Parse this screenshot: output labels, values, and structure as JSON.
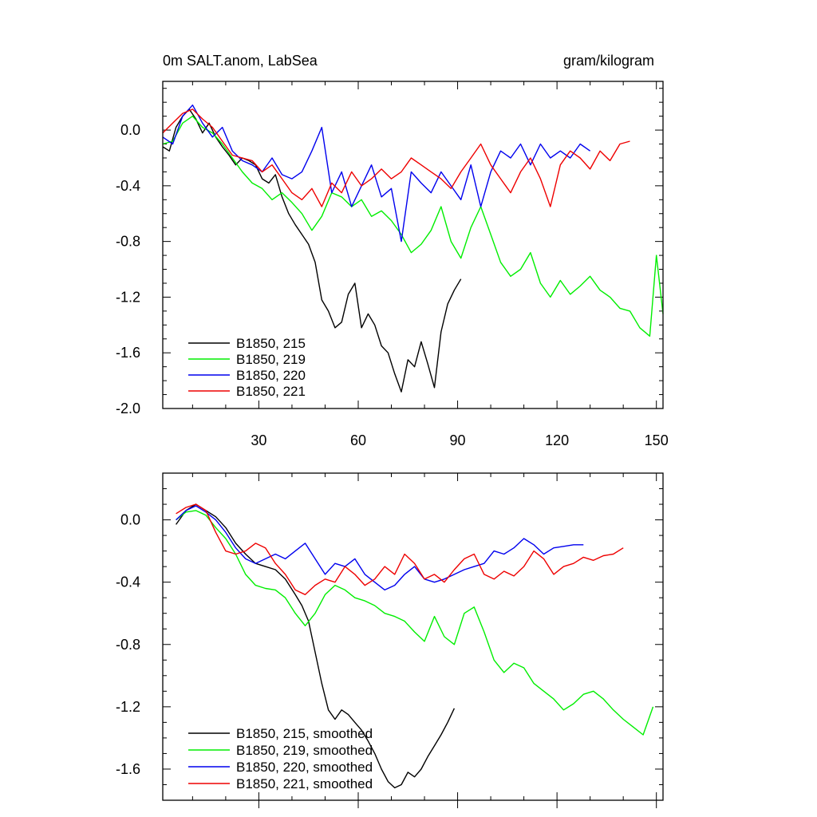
{
  "chart_data": [
    {
      "type": "line",
      "title": "0m SALT.anom, LabSea",
      "units": "gram/kilogram",
      "xlabel": "",
      "ylabel": "",
      "xlim": [
        1,
        152
      ],
      "ylim": [
        -2.0,
        0.35
      ],
      "x_ticks": [
        30,
        60,
        90,
        120,
        150
      ],
      "y_ticks": [
        0.0,
        -0.4,
        -0.8,
        -1.2,
        -1.6,
        -2.0
      ],
      "y_tick_labels": [
        "0.0",
        "-0.4",
        "-0.8",
        "-1.2",
        "-1.6",
        "-2.0"
      ],
      "legend_position": "bottom-left",
      "series": [
        {
          "name": "B1850, 215",
          "color": "#000000",
          "x": [
            1,
            3,
            5,
            7,
            9,
            11,
            13,
            15,
            17,
            19,
            21,
            23,
            25,
            27,
            29,
            31,
            33,
            35,
            37,
            39,
            41,
            43,
            45,
            47,
            49,
            51,
            53,
            55,
            57,
            59,
            61,
            63,
            65,
            67,
            69,
            71,
            73,
            75,
            77,
            79,
            81,
            83,
            85,
            87,
            89,
            91
          ],
          "y": [
            -0.12,
            -0.15,
            0.02,
            0.1,
            0.15,
            0.08,
            -0.02,
            0.05,
            -0.05,
            -0.12,
            -0.18,
            -0.25,
            -0.2,
            -0.22,
            -0.25,
            -0.35,
            -0.38,
            -0.32,
            -0.48,
            -0.6,
            -0.68,
            -0.75,
            -0.82,
            -0.95,
            -1.22,
            -1.3,
            -1.42,
            -1.38,
            -1.18,
            -1.1,
            -1.42,
            -1.32,
            -1.4,
            -1.55,
            -1.6,
            -1.75,
            -1.88,
            -1.65,
            -1.7,
            -1.52,
            -1.68,
            -1.85,
            -1.45,
            -1.25,
            -1.15,
            -1.07
          ]
        },
        {
          "name": "B1850, 219",
          "color": "#00ee00",
          "x": [
            1,
            4,
            7,
            10,
            13,
            16,
            19,
            22,
            25,
            28,
            31,
            34,
            37,
            40,
            43,
            46,
            49,
            52,
            55,
            58,
            61,
            64,
            67,
            70,
            73,
            76,
            79,
            82,
            85,
            88,
            91,
            94,
            97,
            100,
            103,
            106,
            109,
            112,
            115,
            118,
            121,
            124,
            127,
            130,
            133,
            136,
            139,
            142,
            145,
            148,
            150,
            152
          ],
          "y": [
            -0.1,
            -0.08,
            0.05,
            0.1,
            0.02,
            -0.02,
            -0.1,
            -0.2,
            -0.3,
            -0.38,
            -0.42,
            -0.5,
            -0.45,
            -0.52,
            -0.6,
            -0.72,
            -0.62,
            -0.45,
            -0.48,
            -0.55,
            -0.5,
            -0.62,
            -0.58,
            -0.65,
            -0.75,
            -0.88,
            -0.82,
            -0.72,
            -0.55,
            -0.8,
            -0.92,
            -0.7,
            -0.55,
            -0.75,
            -0.95,
            -1.05,
            -1.0,
            -0.88,
            -1.1,
            -1.2,
            -1.08,
            -1.18,
            -1.12,
            -1.05,
            -1.15,
            -1.2,
            -1.28,
            -1.3,
            -1.42,
            -1.48,
            -0.9,
            -1.32
          ]
        },
        {
          "name": "B1850, 220",
          "color": "#0000ee",
          "x": [
            1,
            4,
            7,
            10,
            13,
            16,
            19,
            22,
            25,
            28,
            31,
            34,
            37,
            40,
            43,
            46,
            49,
            52,
            55,
            58,
            61,
            64,
            67,
            70,
            73,
            76,
            79,
            82,
            85,
            88,
            91,
            94,
            97,
            100,
            103,
            106,
            109,
            112,
            115,
            118,
            121,
            124,
            127,
            130
          ],
          "y": [
            -0.05,
            -0.1,
            0.1,
            0.18,
            0.05,
            -0.05,
            0.02,
            -0.15,
            -0.22,
            -0.25,
            -0.3,
            -0.2,
            -0.32,
            -0.35,
            -0.3,
            -0.15,
            0.02,
            -0.45,
            -0.3,
            -0.55,
            -0.4,
            -0.25,
            -0.48,
            -0.42,
            -0.8,
            -0.3,
            -0.38,
            -0.45,
            -0.3,
            -0.4,
            -0.5,
            -0.25,
            -0.55,
            -0.3,
            -0.15,
            -0.2,
            -0.1,
            -0.25,
            -0.1,
            -0.2,
            -0.15,
            -0.2,
            -0.1,
            -0.15
          ]
        },
        {
          "name": "B1850, 221",
          "color": "#ee0000",
          "x": [
            1,
            4,
            7,
            10,
            13,
            16,
            19,
            22,
            25,
            28,
            31,
            34,
            37,
            40,
            43,
            46,
            49,
            52,
            55,
            58,
            61,
            64,
            67,
            70,
            73,
            76,
            79,
            82,
            85,
            88,
            91,
            94,
            97,
            100,
            103,
            106,
            109,
            112,
            115,
            118,
            121,
            124,
            127,
            130,
            133,
            136,
            139,
            142
          ],
          "y": [
            -0.02,
            0.05,
            0.12,
            0.15,
            0.08,
            0.02,
            -0.08,
            -0.18,
            -0.2,
            -0.22,
            -0.3,
            -0.25,
            -0.35,
            -0.45,
            -0.5,
            -0.42,
            -0.55,
            -0.38,
            -0.45,
            -0.3,
            -0.4,
            -0.35,
            -0.28,
            -0.35,
            -0.3,
            -0.2,
            -0.25,
            -0.3,
            -0.35,
            -0.42,
            -0.3,
            -0.2,
            -0.1,
            -0.25,
            -0.35,
            -0.45,
            -0.3,
            -0.2,
            -0.35,
            -0.55,
            -0.25,
            -0.15,
            -0.2,
            -0.28,
            -0.15,
            -0.22,
            -0.1,
            -0.08
          ]
        }
      ]
    },
    {
      "type": "line",
      "title": "",
      "xlabel": "",
      "ylabel": "",
      "xlim": [
        1,
        152
      ],
      "ylim": [
        -1.8,
        0.3
      ],
      "x_ticks": [
        30,
        60,
        90,
        120,
        150
      ],
      "y_ticks": [
        0.0,
        -0.4,
        -0.8,
        -1.2,
        -1.6
      ],
      "y_tick_labels": [
        "0.0",
        "-0.4",
        "-0.8",
        "-1.2",
        "-1.6"
      ],
      "legend_position": "bottom-left",
      "series": [
        {
          "name": "B1850, 215, smoothed",
          "color": "#000000",
          "x": [
            5,
            8,
            11,
            14,
            17,
            20,
            23,
            26,
            29,
            32,
            35,
            38,
            41,
            43,
            45,
            47,
            49,
            51,
            53,
            55,
            57,
            59,
            61,
            63,
            65,
            67,
            69,
            71,
            73,
            75,
            77,
            79,
            81,
            83,
            85,
            87,
            89
          ],
          "y": [
            -0.03,
            0.06,
            0.1,
            0.06,
            0.02,
            -0.05,
            -0.15,
            -0.22,
            -0.28,
            -0.3,
            -0.32,
            -0.38,
            -0.48,
            -0.55,
            -0.65,
            -0.85,
            -1.05,
            -1.22,
            -1.28,
            -1.22,
            -1.25,
            -1.3,
            -1.35,
            -1.42,
            -1.5,
            -1.6,
            -1.68,
            -1.72,
            -1.7,
            -1.62,
            -1.65,
            -1.6,
            -1.52,
            -1.45,
            -1.38,
            -1.3,
            -1.21
          ]
        },
        {
          "name": "B1850, 219, smoothed",
          "color": "#00ee00",
          "x": [
            5,
            8,
            11,
            14,
            17,
            20,
            23,
            26,
            29,
            32,
            35,
            38,
            41,
            44,
            47,
            50,
            53,
            56,
            59,
            62,
            65,
            68,
            71,
            74,
            77,
            80,
            83,
            86,
            89,
            92,
            95,
            98,
            101,
            104,
            107,
            110,
            113,
            116,
            119,
            122,
            125,
            128,
            131,
            134,
            137,
            140,
            143,
            146,
            149
          ],
          "y": [
            0.0,
            0.05,
            0.06,
            0.03,
            -0.05,
            -0.12,
            -0.22,
            -0.35,
            -0.42,
            -0.44,
            -0.45,
            -0.5,
            -0.6,
            -0.68,
            -0.6,
            -0.48,
            -0.42,
            -0.45,
            -0.5,
            -0.52,
            -0.55,
            -0.6,
            -0.62,
            -0.65,
            -0.72,
            -0.78,
            -0.62,
            -0.75,
            -0.8,
            -0.6,
            -0.56,
            -0.72,
            -0.9,
            -0.98,
            -0.92,
            -0.95,
            -1.05,
            -1.1,
            -1.15,
            -1.22,
            -1.18,
            -1.12,
            -1.1,
            -1.15,
            -1.22,
            -1.28,
            -1.33,
            -1.38,
            -1.2
          ]
        },
        {
          "name": "B1850, 220, smoothed",
          "color": "#0000ee",
          "x": [
            5,
            8,
            11,
            14,
            17,
            20,
            23,
            26,
            29,
            32,
            35,
            38,
            41,
            44,
            47,
            50,
            53,
            56,
            59,
            62,
            65,
            68,
            71,
            74,
            77,
            80,
            83,
            86,
            89,
            92,
            95,
            98,
            101,
            104,
            107,
            110,
            113,
            116,
            119,
            122,
            125,
            128
          ],
          "y": [
            0.0,
            0.06,
            0.09,
            0.05,
            0.0,
            -0.08,
            -0.18,
            -0.25,
            -0.28,
            -0.25,
            -0.22,
            -0.25,
            -0.2,
            -0.15,
            -0.25,
            -0.35,
            -0.28,
            -0.3,
            -0.25,
            -0.35,
            -0.4,
            -0.45,
            -0.42,
            -0.35,
            -0.3,
            -0.38,
            -0.4,
            -0.38,
            -0.35,
            -0.32,
            -0.3,
            -0.28,
            -0.2,
            -0.22,
            -0.18,
            -0.12,
            -0.16,
            -0.22,
            -0.18,
            -0.17,
            -0.16,
            -0.16
          ]
        },
        {
          "name": "B1850, 221, smoothed",
          "color": "#ee0000",
          "x": [
            5,
            8,
            11,
            14,
            17,
            20,
            23,
            26,
            29,
            32,
            35,
            38,
            41,
            44,
            47,
            50,
            53,
            56,
            59,
            62,
            65,
            68,
            71,
            74,
            77,
            80,
            83,
            86,
            89,
            92,
            95,
            98,
            101,
            104,
            107,
            110,
            113,
            116,
            119,
            122,
            125,
            128,
            131,
            134,
            137,
            140
          ],
          "y": [
            0.04,
            0.08,
            0.1,
            0.06,
            -0.08,
            -0.2,
            -0.22,
            -0.2,
            -0.15,
            -0.18,
            -0.28,
            -0.35,
            -0.45,
            -0.48,
            -0.42,
            -0.38,
            -0.4,
            -0.3,
            -0.35,
            -0.42,
            -0.38,
            -0.3,
            -0.35,
            -0.22,
            -0.28,
            -0.38,
            -0.35,
            -0.4,
            -0.32,
            -0.25,
            -0.22,
            -0.35,
            -0.38,
            -0.33,
            -0.36,
            -0.3,
            -0.2,
            -0.25,
            -0.35,
            -0.3,
            -0.28,
            -0.24,
            -0.26,
            -0.23,
            -0.22,
            -0.18
          ]
        }
      ]
    }
  ]
}
